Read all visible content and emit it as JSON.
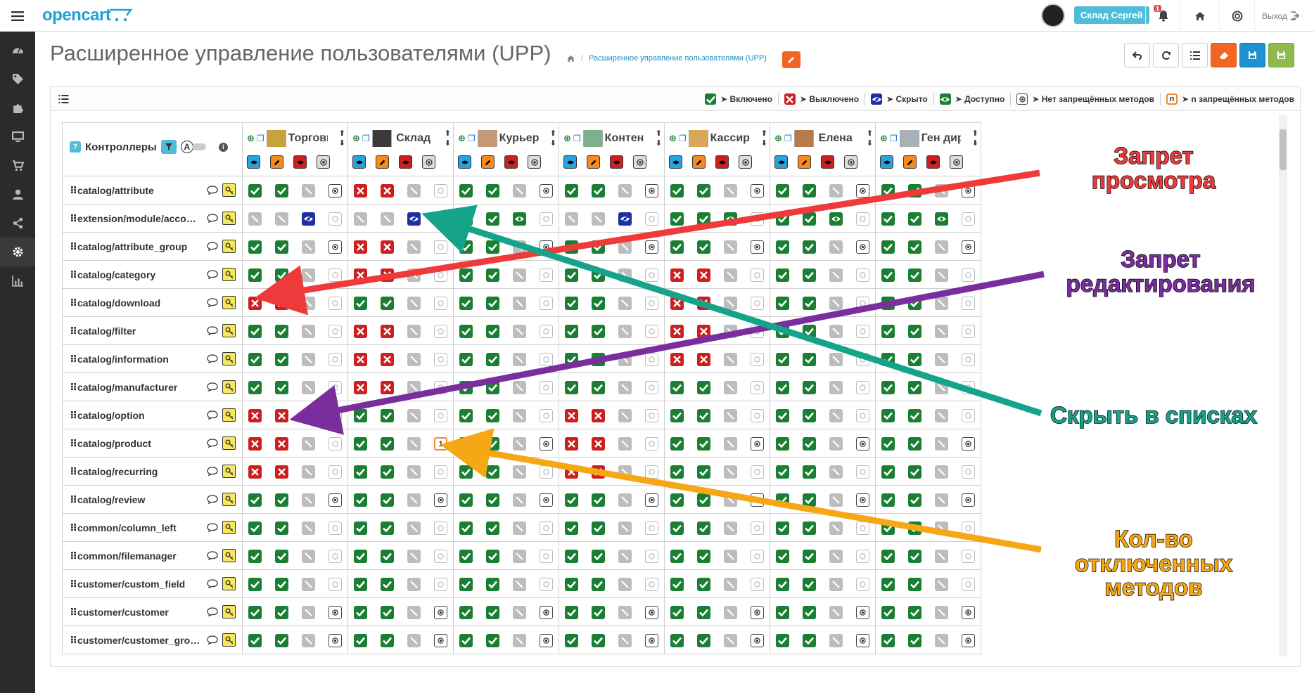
{
  "app": {
    "logo": "opencart"
  },
  "topbar": {
    "user_label": "Склад Сергей",
    "notifications_count": "1",
    "logout_label": "Выход"
  },
  "page": {
    "title": "Расширенное управление пользователями (UPP)",
    "breadcrumb": "Расширенное управление пользователями (UPP)"
  },
  "legend": [
    {
      "icon": "check",
      "label": "➤ Включено",
      "color": "#1a7e33"
    },
    {
      "icon": "cross",
      "label": "➤ Выключено",
      "color": "#cc2020"
    },
    {
      "icon": "eye-slash",
      "label": "➤ Скрыто",
      "color": "#1d2fa5"
    },
    {
      "icon": "eye",
      "label": "➤ Доступно",
      "color": "#1a7e33"
    },
    {
      "icon": "dot",
      "label": "➤ Нет запрещённых методов",
      "color": "#444"
    },
    {
      "icon": "n",
      "label": "➤ n запрещённых методов",
      "color": "#f28a2e"
    }
  ],
  "grid": {
    "header": "Контроллеры",
    "filter_letter": "A",
    "users": [
      "Торговый",
      "Склад",
      "Курьер",
      "Контент",
      "Кассир",
      "Елена",
      "Ген директор"
    ],
    "rows": [
      {
        "c": "catalog/attribute",
        "u": [
          [
            "on",
            "on",
            "na",
            "dot"
          ],
          [
            "off",
            "off",
            "na",
            "dotg"
          ],
          [
            "on",
            "on",
            "na",
            "dot"
          ],
          [
            "on",
            "on",
            "na",
            "dot"
          ],
          [
            "on",
            "on",
            "na",
            "dot"
          ],
          [
            "on",
            "on",
            "na",
            "dot"
          ],
          [
            "on",
            "on",
            "na",
            "dot"
          ]
        ]
      },
      {
        "c": "extension/module/acco…",
        "u": [
          [
            "na",
            "na",
            "hid",
            "dotg"
          ],
          [
            "na",
            "na",
            "hid",
            "dotg"
          ],
          [
            "on",
            "on",
            "vis",
            "dotg"
          ],
          [
            "na",
            "na",
            "hid",
            "dotg"
          ],
          [
            "on",
            "on",
            "vis",
            "dotg"
          ],
          [
            "on",
            "on",
            "vis",
            "dotg"
          ],
          [
            "on",
            "on",
            "vis",
            "dotg"
          ]
        ]
      },
      {
        "c": "catalog/attribute_group",
        "u": [
          [
            "on",
            "on",
            "na",
            "dot"
          ],
          [
            "off",
            "off",
            "na",
            "dotg"
          ],
          [
            "on",
            "on",
            "na",
            "dot"
          ],
          [
            "on",
            "on",
            "na",
            "dot"
          ],
          [
            "on",
            "on",
            "na",
            "dot"
          ],
          [
            "on",
            "on",
            "na",
            "dot"
          ],
          [
            "on",
            "on",
            "na",
            "dot"
          ]
        ]
      },
      {
        "c": "catalog/category",
        "u": [
          [
            "on",
            "on",
            "na",
            "dotg"
          ],
          [
            "off",
            "off",
            "na",
            "dotg"
          ],
          [
            "on",
            "on",
            "na",
            "dotg"
          ],
          [
            "on",
            "on",
            "na",
            "dotg"
          ],
          [
            "off",
            "off",
            "na",
            "dotg"
          ],
          [
            "on",
            "on",
            "na",
            "dotg"
          ],
          [
            "on",
            "on",
            "na",
            "dotg"
          ]
        ]
      },
      {
        "c": "catalog/download",
        "u": [
          [
            "off",
            "off",
            "na",
            "dotg"
          ],
          [
            "on",
            "on",
            "na",
            "dotg"
          ],
          [
            "on",
            "on",
            "na",
            "dotg"
          ],
          [
            "on",
            "on",
            "na",
            "dotg"
          ],
          [
            "off",
            "off",
            "na",
            "dotg"
          ],
          [
            "on",
            "on",
            "na",
            "dotg"
          ],
          [
            "on",
            "on",
            "na",
            "dotg"
          ]
        ]
      },
      {
        "c": "catalog/filter",
        "u": [
          [
            "on",
            "on",
            "na",
            "dotg"
          ],
          [
            "off",
            "off",
            "na",
            "dotg"
          ],
          [
            "on",
            "on",
            "na",
            "dotg"
          ],
          [
            "on",
            "on",
            "na",
            "dotg"
          ],
          [
            "off",
            "off",
            "na",
            "dotg"
          ],
          [
            "on",
            "on",
            "na",
            "dotg"
          ],
          [
            "on",
            "on",
            "na",
            "dotg"
          ]
        ]
      },
      {
        "c": "catalog/information",
        "u": [
          [
            "on",
            "on",
            "na",
            "dotg"
          ],
          [
            "off",
            "off",
            "na",
            "dotg"
          ],
          [
            "on",
            "on",
            "na",
            "dotg"
          ],
          [
            "on",
            "on",
            "na",
            "dotg"
          ],
          [
            "off",
            "off",
            "na",
            "dotg"
          ],
          [
            "on",
            "on",
            "na",
            "dotg"
          ],
          [
            "on",
            "on",
            "na",
            "dotg"
          ]
        ]
      },
      {
        "c": "catalog/manufacturer",
        "u": [
          [
            "on",
            "on",
            "na",
            "dotg"
          ],
          [
            "off",
            "off",
            "na",
            "dotg"
          ],
          [
            "on",
            "on",
            "na",
            "dotg"
          ],
          [
            "on",
            "on",
            "na",
            "dotg"
          ],
          [
            "on",
            "on",
            "na",
            "dotg"
          ],
          [
            "on",
            "on",
            "na",
            "dotg"
          ],
          [
            "on",
            "on",
            "na",
            "dotg"
          ]
        ]
      },
      {
        "c": "catalog/option",
        "u": [
          [
            "off",
            "off",
            "na",
            "dotg"
          ],
          [
            "on",
            "on",
            "na",
            "dotg"
          ],
          [
            "on",
            "on",
            "na",
            "dotg"
          ],
          [
            "off",
            "off",
            "na",
            "dotg"
          ],
          [
            "on",
            "on",
            "na",
            "dotg"
          ],
          [
            "on",
            "on",
            "na",
            "dotg"
          ],
          [
            "on",
            "on",
            "na",
            "dotg"
          ]
        ]
      },
      {
        "c": "catalog/product",
        "u": [
          [
            "off",
            "off",
            "na",
            "dotg"
          ],
          [
            "on",
            "on",
            "na",
            "num:1"
          ],
          [
            "on",
            "on",
            "na",
            "dot"
          ],
          [
            "off",
            "off",
            "na",
            "dotg"
          ],
          [
            "on",
            "on",
            "na",
            "dot"
          ],
          [
            "on",
            "on",
            "na",
            "dot"
          ],
          [
            "on",
            "on",
            "na",
            "dot"
          ]
        ]
      },
      {
        "c": "catalog/recurring",
        "u": [
          [
            "off",
            "off",
            "na",
            "dotg"
          ],
          [
            "on",
            "on",
            "na",
            "dotg"
          ],
          [
            "on",
            "on",
            "na",
            "dotg"
          ],
          [
            "off",
            "off",
            "na",
            "dotg"
          ],
          [
            "on",
            "on",
            "na",
            "dotg"
          ],
          [
            "on",
            "on",
            "na",
            "dotg"
          ],
          [
            "on",
            "on",
            "na",
            "dotg"
          ]
        ]
      },
      {
        "c": "catalog/review",
        "u": [
          [
            "on",
            "on",
            "na",
            "dot"
          ],
          [
            "on",
            "on",
            "na",
            "dot"
          ],
          [
            "on",
            "on",
            "na",
            "dot"
          ],
          [
            "on",
            "on",
            "na",
            "dot"
          ],
          [
            "on",
            "on",
            "na",
            "dot"
          ],
          [
            "on",
            "on",
            "na",
            "dot"
          ],
          [
            "on",
            "on",
            "na",
            "dot"
          ]
        ]
      },
      {
        "c": "common/column_left",
        "u": [
          [
            "on",
            "on",
            "na",
            "dotg"
          ],
          [
            "on",
            "on",
            "na",
            "dotg"
          ],
          [
            "on",
            "on",
            "na",
            "dotg"
          ],
          [
            "on",
            "on",
            "na",
            "dotg"
          ],
          [
            "on",
            "on",
            "na",
            "dotg"
          ],
          [
            "on",
            "on",
            "na",
            "dotg"
          ],
          [
            "on",
            "on",
            "na",
            "dotg"
          ]
        ]
      },
      {
        "c": "common/filemanager",
        "u": [
          [
            "on",
            "on",
            "na",
            "dotg"
          ],
          [
            "on",
            "on",
            "na",
            "dotg"
          ],
          [
            "on",
            "on",
            "na",
            "dotg"
          ],
          [
            "on",
            "on",
            "na",
            "dotg"
          ],
          [
            "on",
            "on",
            "na",
            "dotg"
          ],
          [
            "on",
            "on",
            "na",
            "dotg"
          ],
          [
            "on",
            "on",
            "na",
            "dotg"
          ]
        ]
      },
      {
        "c": "customer/custom_field",
        "u": [
          [
            "on",
            "on",
            "na",
            "dotg"
          ],
          [
            "on",
            "on",
            "na",
            "dotg"
          ],
          [
            "on",
            "on",
            "na",
            "dotg"
          ],
          [
            "on",
            "on",
            "na",
            "dotg"
          ],
          [
            "on",
            "on",
            "na",
            "dotg"
          ],
          [
            "on",
            "on",
            "na",
            "dotg"
          ],
          [
            "on",
            "on",
            "na",
            "dotg"
          ]
        ]
      },
      {
        "c": "customer/customer",
        "u": [
          [
            "on",
            "on",
            "na",
            "dot"
          ],
          [
            "on",
            "on",
            "na",
            "dot"
          ],
          [
            "on",
            "on",
            "na",
            "dot"
          ],
          [
            "on",
            "on",
            "na",
            "dot"
          ],
          [
            "on",
            "on",
            "na",
            "dot"
          ],
          [
            "on",
            "on",
            "na",
            "dot"
          ],
          [
            "on",
            "on",
            "na",
            "dot"
          ]
        ]
      },
      {
        "c": "customer/customer_gro…",
        "u": [
          [
            "on",
            "on",
            "na",
            "dot"
          ],
          [
            "on",
            "on",
            "na",
            "dot"
          ],
          [
            "on",
            "on",
            "na",
            "dot"
          ],
          [
            "on",
            "on",
            "na",
            "dot"
          ],
          [
            "on",
            "on",
            "na",
            "dot"
          ],
          [
            "on",
            "on",
            "na",
            "dot"
          ],
          [
            "on",
            "on",
            "na",
            "dot"
          ]
        ]
      }
    ]
  },
  "annotations": [
    {
      "text": "Запрет\nпросмотра",
      "color": "#ee3a3a"
    },
    {
      "text": "Запрет\nредактирования",
      "color": "#7a2e9e"
    },
    {
      "text": "Скрыть в списках",
      "color": "#15a38a"
    },
    {
      "text": "Кол-во\nотключенных\nметодов",
      "color": "#f6a715"
    }
  ]
}
